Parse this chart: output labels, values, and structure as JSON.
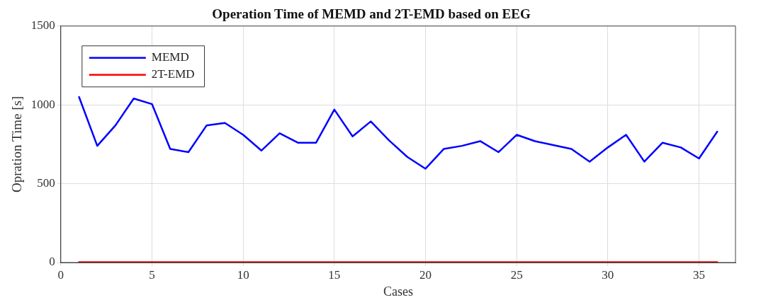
{
  "chart_data": {
    "type": "line",
    "title": "Operation Time of MEMD and 2T-EMD based on EEG",
    "xlabel": "Cases",
    "ylabel": "Opration Time [s]",
    "x": [
      1,
      2,
      3,
      4,
      5,
      6,
      7,
      8,
      9,
      10,
      11,
      12,
      13,
      14,
      15,
      16,
      17,
      18,
      19,
      20,
      21,
      22,
      23,
      24,
      25,
      26,
      27,
      28,
      29,
      30,
      31,
      32,
      33,
      34,
      35,
      36
    ],
    "series": [
      {
        "name": "MEMD",
        "color": "#0000ff",
        "values": [
          1050,
          740,
          870,
          1040,
          1005,
          720,
          700,
          870,
          885,
          810,
          710,
          820,
          760,
          760,
          970,
          800,
          895,
          775,
          670,
          595,
          720,
          740,
          770,
          700,
          810,
          770,
          745,
          720,
          640,
          730,
          810,
          640,
          760,
          730,
          660,
          830
        ]
      },
      {
        "name": "2T-EMD",
        "color": "#ff0000",
        "values": [
          2,
          2,
          2,
          2,
          2,
          2,
          2,
          2,
          2,
          2,
          2,
          2,
          2,
          2,
          2,
          2,
          2,
          2,
          2,
          2,
          2,
          2,
          2,
          2,
          2,
          2,
          2,
          2,
          2,
          2,
          2,
          2,
          2,
          2,
          2,
          2
        ]
      }
    ],
    "xlim": [
      0,
      37
    ],
    "xticks": [
      0,
      5,
      10,
      15,
      20,
      25,
      30,
      35
    ],
    "ylim": [
      0,
      1500
    ],
    "yticks": [
      0,
      500,
      1000,
      1500
    ],
    "grid": true,
    "legend": "top left",
    "marker": "none",
    "line_style": "solid"
  }
}
